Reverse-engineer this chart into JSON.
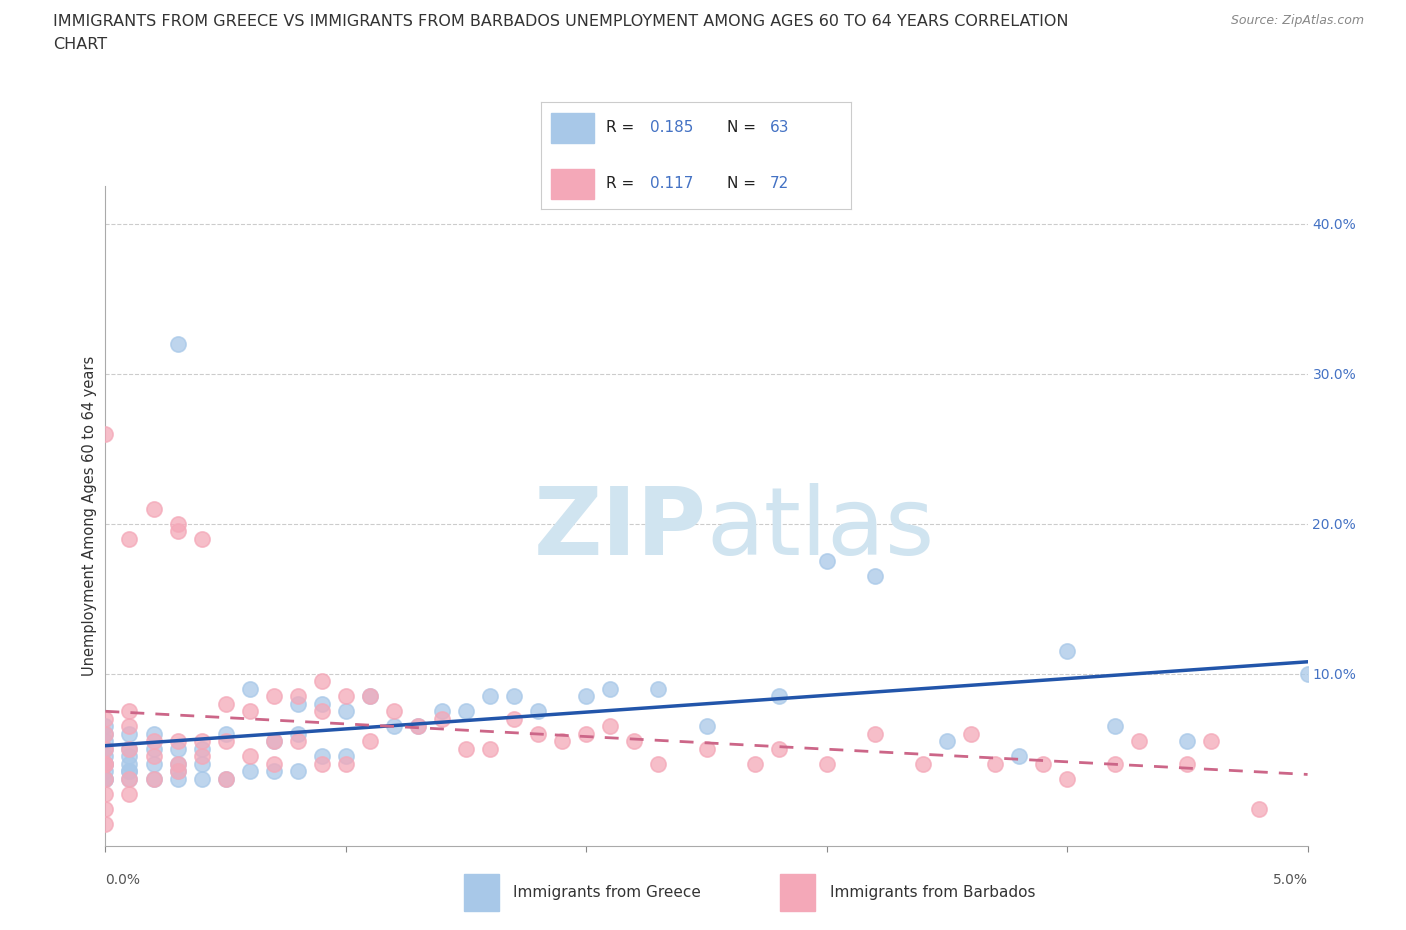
{
  "title_line1": "IMMIGRANTS FROM GREECE VS IMMIGRANTS FROM BARBADOS UNEMPLOYMENT AMONG AGES 60 TO 64 YEARS CORRELATION",
  "title_line2": "CHART",
  "source": "Source: ZipAtlas.com",
  "ylabel": "Unemployment Among Ages 60 to 64 years",
  "xmin": 0.0,
  "xmax": 0.05,
  "ymin": -0.015,
  "ymax": 0.425,
  "greece_R": 0.185,
  "greece_N": 63,
  "barbados_R": 0.117,
  "barbados_N": 72,
  "greece_color": "#a8c8e8",
  "barbados_color": "#f4a8b8",
  "greece_line_color": "#2255aa",
  "barbados_line_color": "#cc6688",
  "watermark_color": "#d0e4f0",
  "greece_x": [
    0.0,
    0.0,
    0.0,
    0.0,
    0.0,
    0.0,
    0.0,
    0.0,
    0.0,
    0.0,
    0.001,
    0.001,
    0.001,
    0.001,
    0.001,
    0.001,
    0.001,
    0.002,
    0.002,
    0.002,
    0.002,
    0.003,
    0.003,
    0.003,
    0.003,
    0.003,
    0.004,
    0.004,
    0.004,
    0.005,
    0.005,
    0.006,
    0.006,
    0.007,
    0.007,
    0.008,
    0.008,
    0.008,
    0.009,
    0.009,
    0.01,
    0.01,
    0.011,
    0.012,
    0.013,
    0.014,
    0.015,
    0.016,
    0.017,
    0.018,
    0.02,
    0.021,
    0.023,
    0.025,
    0.028,
    0.03,
    0.032,
    0.035,
    0.038,
    0.04,
    0.042,
    0.045,
    0.05
  ],
  "greece_y": [
    0.03,
    0.035,
    0.04,
    0.045,
    0.05,
    0.055,
    0.06,
    0.065,
    0.03,
    0.04,
    0.03,
    0.035,
    0.04,
    0.045,
    0.05,
    0.06,
    0.035,
    0.03,
    0.04,
    0.05,
    0.06,
    0.03,
    0.035,
    0.04,
    0.05,
    0.32,
    0.03,
    0.04,
    0.05,
    0.03,
    0.06,
    0.035,
    0.09,
    0.035,
    0.055,
    0.035,
    0.06,
    0.08,
    0.045,
    0.08,
    0.045,
    0.075,
    0.085,
    0.065,
    0.065,
    0.075,
    0.075,
    0.085,
    0.085,
    0.075,
    0.085,
    0.09,
    0.09,
    0.065,
    0.085,
    0.175,
    0.165,
    0.055,
    0.045,
    0.115,
    0.065,
    0.055,
    0.1
  ],
  "barbados_x": [
    0.0,
    0.0,
    0.0,
    0.0,
    0.0,
    0.0,
    0.0,
    0.0,
    0.0,
    0.0,
    0.001,
    0.001,
    0.001,
    0.001,
    0.001,
    0.001,
    0.002,
    0.002,
    0.002,
    0.002,
    0.003,
    0.003,
    0.003,
    0.003,
    0.003,
    0.004,
    0.004,
    0.004,
    0.005,
    0.005,
    0.005,
    0.006,
    0.006,
    0.007,
    0.007,
    0.007,
    0.008,
    0.008,
    0.009,
    0.009,
    0.009,
    0.01,
    0.01,
    0.011,
    0.011,
    0.012,
    0.013,
    0.014,
    0.015,
    0.016,
    0.017,
    0.018,
    0.019,
    0.02,
    0.021,
    0.022,
    0.023,
    0.025,
    0.027,
    0.028,
    0.03,
    0.032,
    0.034,
    0.036,
    0.037,
    0.039,
    0.04,
    0.042,
    0.043,
    0.045,
    0.046,
    0.048
  ],
  "barbados_y": [
    0.0,
    0.01,
    0.02,
    0.03,
    0.04,
    0.05,
    0.06,
    0.07,
    0.26,
    0.04,
    0.02,
    0.03,
    0.05,
    0.065,
    0.075,
    0.19,
    0.03,
    0.045,
    0.055,
    0.21,
    0.04,
    0.055,
    0.195,
    0.2,
    0.035,
    0.045,
    0.055,
    0.19,
    0.03,
    0.055,
    0.08,
    0.045,
    0.075,
    0.04,
    0.055,
    0.085,
    0.055,
    0.085,
    0.04,
    0.075,
    0.095,
    0.04,
    0.085,
    0.055,
    0.085,
    0.075,
    0.065,
    0.07,
    0.05,
    0.05,
    0.07,
    0.06,
    0.055,
    0.06,
    0.065,
    0.055,
    0.04,
    0.05,
    0.04,
    0.05,
    0.04,
    0.06,
    0.04,
    0.06,
    0.04,
    0.04,
    0.03,
    0.04,
    0.055,
    0.04,
    0.055,
    0.01
  ]
}
